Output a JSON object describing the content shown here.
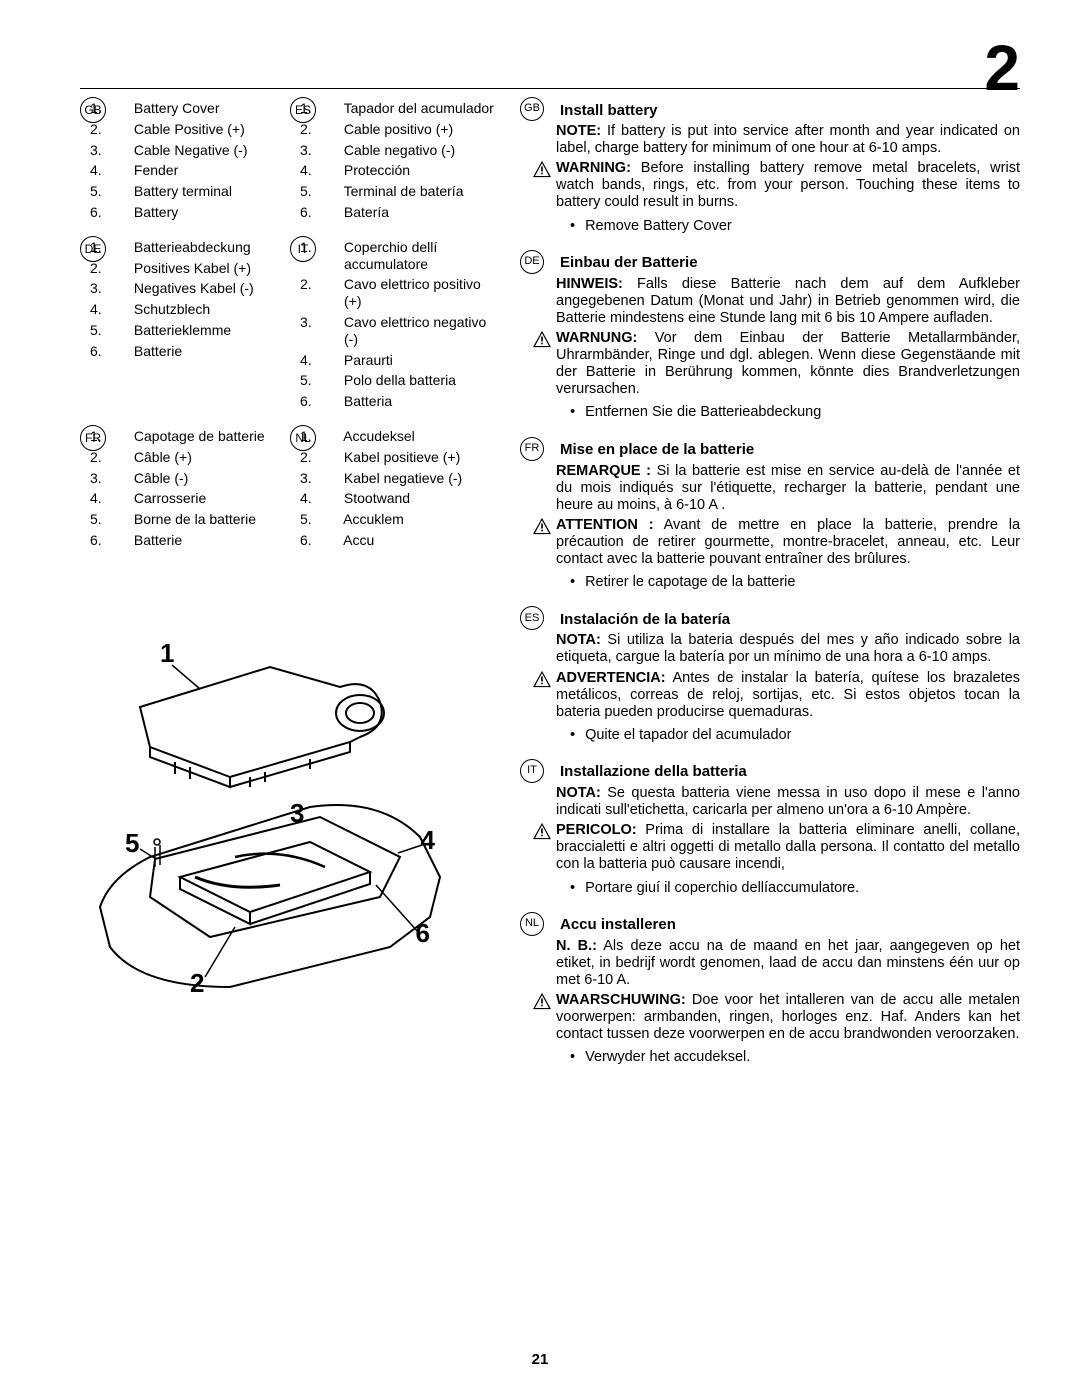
{
  "chapter": "2",
  "page_number": "21",
  "parts_lists": [
    {
      "lang": "GB",
      "items": [
        "Battery Cover",
        "Cable Positive (+)",
        "Cable Negative (-)",
        "Fender",
        "Battery terminal",
        "Battery"
      ]
    },
    {
      "lang": "ES",
      "items": [
        "Tapador del acumulador",
        "Cable positivo (+)",
        "Cable negativo (-)",
        "Protección",
        "Terminal de batería",
        "Batería"
      ]
    },
    {
      "lang": "DE",
      "items": [
        "Batterieabdeckung",
        "Positives Kabel  (+)",
        "Negatives Kabel (-)",
        "Schutzblech",
        "Batterieklemme",
        "Batterie"
      ]
    },
    {
      "lang": "IT",
      "items": [
        "Coperchio dellí accumulatore",
        "Cavo elettrico positivo (+)",
        "Cavo elettrico negativo (-)",
        "Paraurti",
        "Polo della batteria",
        "Batteria"
      ]
    },
    {
      "lang": "FR",
      "items": [
        "Capotage de batterie",
        "Câble (+)",
        "Câble (-)",
        "Carrosserie",
        "Borne de la batterie",
        "Batterie"
      ]
    },
    {
      "lang": "NL",
      "items": [
        "Accudeksel",
        "Kabel positieve (+)",
        "Kabel negatieve (-)",
        "Stootwand",
        "Accuklem",
        "Accu"
      ]
    }
  ],
  "sections": [
    {
      "lang": "GB",
      "title": "Install battery",
      "note_label": "NOTE:",
      "note": "If battery is put into service after month and year indicated on label, charge battery for minimum of one hour at 6-10 amps.",
      "warn_label": "WARNING:",
      "warn": "Before installing battery remove metal bracelets, wrist watch bands, rings, etc. from your person. Touching these items to battery could result in burns.",
      "bullet": "Remove Battery Cover"
    },
    {
      "lang": "DE",
      "title": "Einbau der Batterie",
      "note_label": "HINWEIS:",
      "note": "Falls diese Batterie nach dem auf dem Aufkleber angegebenen Datum (Monat und Jahr) in Betrieb genommen wird, die Batterie mindestens eine Stunde lang mit 6 bis 10 Ampere aufladen.",
      "warn_label": "WARNUNG:",
      "warn": "Vor dem Einbau der Batterie Metallarmbänder, Uhrarmbänder, Ringe und dgl. ablegen. Wenn diese Gegenstäande mit der Batterie in Berührung kommen, könnte dies Brandverletzungen verursachen.",
      "bullet": "Entfernen Sie die Batterieabdeckung"
    },
    {
      "lang": "FR",
      "title": "Mise en place de la batterie",
      "note_label": "REMARQUE :",
      "note": "Si la batterie est mise en service au-delà de l'année et du mois indiqués sur l'étiquette, recharger la batterie, pendant une heure au moins, à 6-10 A .",
      "warn_label": "ATTENTION :",
      "warn": "Avant de mettre en place la batterie, prendre la précaution de retirer gourmette, montre-bracelet, anneau, etc. Leur contact avec la batterie pouvant entraîner des brûlures.",
      "bullet": "Retirer le capotage de la batterie"
    },
    {
      "lang": "ES",
      "title": "Instalación de la batería",
      "note_label": "NOTA:",
      "note": "Si utiliza la bateria después del mes y año indicado sobre la etiqueta, cargue la batería por un mínimo de una hora a 6-10 amps.",
      "warn_label": "ADVERTENCIA:",
      "warn": "Antes de instalar la batería, quítese los brazaletes metálicos, correas de reloj, sortijas, etc.  Si estos objetos tocan la bateria pueden producirse quemaduras.",
      "bullet": "Quite el tapador del acumulador"
    },
    {
      "lang": "IT",
      "title": "Installazione della batteria",
      "note_label": "NOTA:",
      "note": "Se questa batteria viene messa in uso dopo il mese e l'anno indicati sull'etichetta, caricarla per almeno un'ora a 6-10 Ampère.",
      "warn_label": "PERICOLO:",
      "warn": "Prima di installare la batteria eliminare anelli, collane, braccialetti e altri oggetti di metallo dalla persona.  Il contatto del metallo con la batteria può causare incendi,",
      "bullet": "Portare giuí il coperchio dellíaccumulatore."
    },
    {
      "lang": "NL",
      "title": "Accu installeren",
      "note_label": "N. B.:",
      "note": "Als deze accu na de maand en het jaar, aangegeven op het etiket, in bedrijf wordt genomen, laad de accu dan minstens één uur op met 6-10 A.",
      "warn_label": "WAARSCHUWING:",
      "warn": "Doe voor het intalleren van de accu alle metalen voorwerpen: armbanden, ringen, horloges enz. Haf. Anders kan het contact tussen deze voorwerpen en de accu brandwonden veroorzaken.",
      "bullet": "Verwyder het accudeksel."
    }
  ],
  "diagram_labels": {
    "1": "1",
    "2": "2",
    "3": "3",
    "4": "4",
    "5": "5",
    "6": "6"
  }
}
